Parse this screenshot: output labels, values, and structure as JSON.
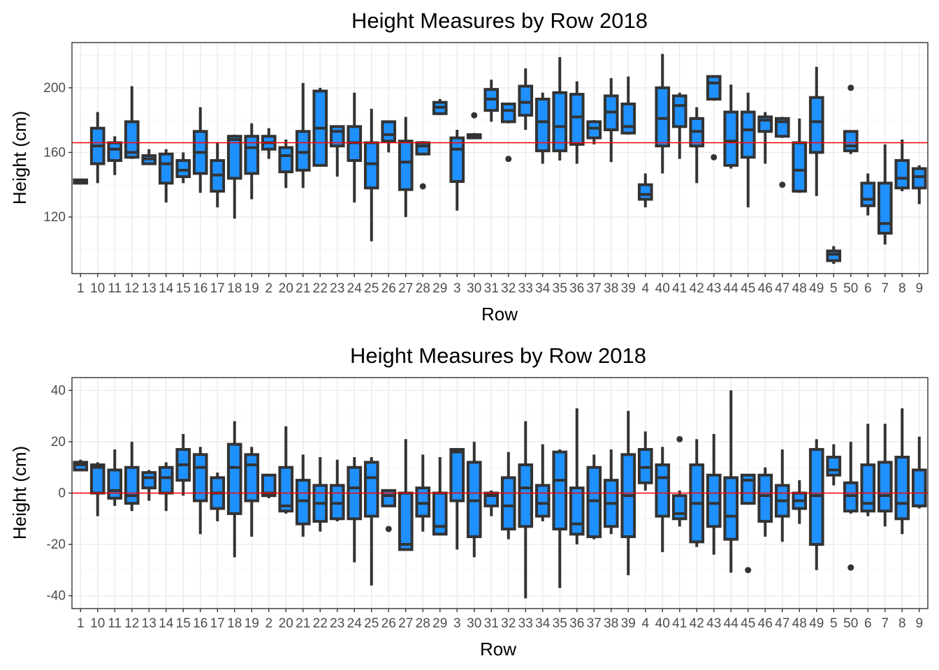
{
  "colors": {
    "box_fill": "#1e90ff",
    "box_line": "#333333",
    "reference_line": "#ff0000",
    "grid_major": "#ebebeb",
    "grid_minor": "#f5f5f5",
    "panel_border": "#333333"
  },
  "chart_data": [
    {
      "type": "boxplot",
      "title": "Height Measures by Row 2018",
      "xlabel": "Row",
      "ylabel": "Height (cm)",
      "ylim": [
        85,
        228
      ],
      "yticks": [
        120,
        160,
        200
      ],
      "reference_line": 166,
      "grid": true,
      "categories": [
        "1",
        "10",
        "11",
        "12",
        "13",
        "14",
        "15",
        "16",
        "17",
        "18",
        "19",
        "2",
        "20",
        "21",
        "22",
        "23",
        "24",
        "25",
        "26",
        "27",
        "28",
        "29",
        "3",
        "30",
        "31",
        "32",
        "33",
        "34",
        "35",
        "36",
        "37",
        "38",
        "39",
        "4",
        "40",
        "41",
        "42",
        "43",
        "44",
        "45",
        "46",
        "47",
        "48",
        "49",
        "5",
        "50",
        "6",
        "7",
        "8",
        "9"
      ],
      "boxes": [
        {
          "min": 141,
          "q1": 141,
          "median": 142,
          "q3": 143,
          "max": 143,
          "outliers": []
        },
        {
          "min": 141,
          "q1": 153,
          "median": 164,
          "q3": 175,
          "max": 185,
          "outliers": []
        },
        {
          "min": 146,
          "q1": 155,
          "median": 162,
          "q3": 166,
          "max": 170,
          "outliers": []
        },
        {
          "min": 156,
          "q1": 157,
          "median": 160,
          "q3": 179,
          "max": 201,
          "outliers": []
        },
        {
          "min": 153,
          "q1": 153,
          "median": 156,
          "q3": 158,
          "max": 162,
          "outliers": []
        },
        {
          "min": 129,
          "q1": 141,
          "median": 153,
          "q3": 159,
          "max": 162,
          "outliers": []
        },
        {
          "min": 141,
          "q1": 145,
          "median": 149,
          "q3": 155,
          "max": 160,
          "outliers": []
        },
        {
          "min": 135,
          "q1": 147,
          "median": 160,
          "q3": 173,
          "max": 188,
          "outliers": []
        },
        {
          "min": 126,
          "q1": 136,
          "median": 146,
          "q3": 155,
          "max": 166,
          "outliers": []
        },
        {
          "min": 119,
          "q1": 144,
          "median": 168,
          "q3": 170,
          "max": 171,
          "outliers": []
        },
        {
          "min": 131,
          "q1": 147,
          "median": 163,
          "q3": 170,
          "max": 178,
          "outliers": []
        },
        {
          "min": 156,
          "q1": 162,
          "median": 166,
          "q3": 170,
          "max": 175,
          "outliers": []
        },
        {
          "min": 138,
          "q1": 148,
          "median": 158,
          "q3": 163,
          "max": 168,
          "outliers": []
        },
        {
          "min": 138,
          "q1": 149,
          "median": 160,
          "q3": 173,
          "max": 203,
          "outliers": []
        },
        {
          "min": 152,
          "q1": 152,
          "median": 175,
          "q3": 198,
          "max": 200,
          "outliers": []
        },
        {
          "min": 145,
          "q1": 164,
          "median": 173,
          "q3": 176,
          "max": 176,
          "outliers": []
        },
        {
          "min": 129,
          "q1": 155,
          "median": 166,
          "q3": 176,
          "max": 197,
          "outliers": []
        },
        {
          "min": 105,
          "q1": 138,
          "median": 153,
          "q3": 166,
          "max": 187,
          "outliers": []
        },
        {
          "min": 160,
          "q1": 167,
          "median": 171,
          "q3": 179,
          "max": 179,
          "outliers": []
        },
        {
          "min": 120,
          "q1": 137,
          "median": 154,
          "q3": 167,
          "max": 182,
          "outliers": []
        },
        {
          "min": 159,
          "q1": 159,
          "median": 164,
          "q3": 166,
          "max": 167,
          "outliers": [
            139
          ]
        },
        {
          "min": 184,
          "q1": 184,
          "median": 188,
          "q3": 191,
          "max": 193,
          "outliers": []
        },
        {
          "min": 124,
          "q1": 142,
          "median": 162,
          "q3": 169,
          "max": 174,
          "outliers": []
        },
        {
          "min": 169,
          "q1": 169,
          "median": 170,
          "q3": 171,
          "max": 172,
          "outliers": [
            183
          ]
        },
        {
          "min": 179,
          "q1": 186,
          "median": 193,
          "q3": 199,
          "max": 205,
          "outliers": []
        },
        {
          "min": 178,
          "q1": 179,
          "median": 186,
          "q3": 190,
          "max": 190,
          "outliers": [
            156
          ]
        },
        {
          "min": 174,
          "q1": 183,
          "median": 191,
          "q3": 201,
          "max": 212,
          "outliers": []
        },
        {
          "min": 153,
          "q1": 161,
          "median": 179,
          "q3": 193,
          "max": 197,
          "outliers": []
        },
        {
          "min": 155,
          "q1": 161,
          "median": 176,
          "q3": 197,
          "max": 219,
          "outliers": []
        },
        {
          "min": 153,
          "q1": 165,
          "median": 182,
          "q3": 196,
          "max": 204,
          "outliers": []
        },
        {
          "min": 165,
          "q1": 169,
          "median": 175,
          "q3": 179,
          "max": 180,
          "outliers": []
        },
        {
          "min": 154,
          "q1": 174,
          "median": 185,
          "q3": 195,
          "max": 206,
          "outliers": []
        },
        {
          "min": 171,
          "q1": 172,
          "median": 176,
          "q3": 190,
          "max": 207,
          "outliers": []
        },
        {
          "min": 126,
          "q1": 131,
          "median": 134,
          "q3": 140,
          "max": 147,
          "outliers": []
        },
        {
          "min": 147,
          "q1": 164,
          "median": 181,
          "q3": 200,
          "max": 221,
          "outliers": []
        },
        {
          "min": 156,
          "q1": 176,
          "median": 189,
          "q3": 195,
          "max": 197,
          "outliers": []
        },
        {
          "min": 141,
          "q1": 164,
          "median": 173,
          "q3": 181,
          "max": 188,
          "outliers": []
        },
        {
          "min": 192,
          "q1": 193,
          "median": 203,
          "q3": 207,
          "max": 207,
          "outliers": [
            157
          ]
        },
        {
          "min": 150,
          "q1": 152,
          "median": 167,
          "q3": 185,
          "max": 202,
          "outliers": []
        },
        {
          "min": 126,
          "q1": 157,
          "median": 174,
          "q3": 185,
          "max": 197,
          "outliers": []
        },
        {
          "min": 153,
          "q1": 173,
          "median": 180,
          "q3": 182,
          "max": 185,
          "outliers": []
        },
        {
          "min": 169,
          "q1": 170,
          "median": 179,
          "q3": 181,
          "max": 182,
          "outliers": [
            140
          ]
        },
        {
          "min": 135,
          "q1": 136,
          "median": 149,
          "q3": 166,
          "max": 181,
          "outliers": []
        },
        {
          "min": 133,
          "q1": 160,
          "median": 179,
          "q3": 194,
          "max": 213,
          "outliers": []
        },
        {
          "min": 91,
          "q1": 93,
          "median": 97,
          "q3": 99,
          "max": 102,
          "outliers": []
        },
        {
          "min": 159,
          "q1": 161,
          "median": 164,
          "q3": 173,
          "max": 173,
          "outliers": [
            200
          ]
        },
        {
          "min": 121,
          "q1": 127,
          "median": 131,
          "q3": 141,
          "max": 147,
          "outliers": []
        },
        {
          "min": 103,
          "q1": 110,
          "median": 116,
          "q3": 141,
          "max": 165,
          "outliers": []
        },
        {
          "min": 136,
          "q1": 138,
          "median": 144,
          "q3": 155,
          "max": 168,
          "outliers": []
        },
        {
          "min": 128,
          "q1": 138,
          "median": 145,
          "q3": 150,
          "max": 152,
          "outliers": []
        }
      ]
    },
    {
      "type": "boxplot",
      "title": "Height Measures by Row 2018",
      "xlabel": "Row",
      "ylabel": "Height (cm)",
      "ylim": [
        -45,
        45
      ],
      "yticks": [
        -40,
        -20,
        0,
        20,
        40
      ],
      "reference_line": 0,
      "grid": true,
      "categories": [
        "1",
        "10",
        "11",
        "12",
        "13",
        "14",
        "15",
        "16",
        "17",
        "18",
        "19",
        "2",
        "20",
        "21",
        "22",
        "23",
        "24",
        "25",
        "26",
        "27",
        "28",
        "29",
        "3",
        "30",
        "31",
        "32",
        "33",
        "34",
        "35",
        "36",
        "37",
        "38",
        "39",
        "4",
        "40",
        "41",
        "42",
        "43",
        "44",
        "45",
        "46",
        "47",
        "48",
        "49",
        "5",
        "50",
        "6",
        "7",
        "8",
        "9"
      ],
      "boxes": [
        {
          "min": 9,
          "q1": 9,
          "median": 11,
          "q3": 12,
          "max": 13,
          "outliers": []
        },
        {
          "min": -9,
          "q1": 0,
          "median": 10,
          "q3": 11,
          "max": 12,
          "outliers": []
        },
        {
          "min": -5,
          "q1": -2,
          "median": 1,
          "q3": 9,
          "max": 17,
          "outliers": []
        },
        {
          "min": -7,
          "q1": -4,
          "median": -1,
          "q3": 10,
          "max": 20,
          "outliers": []
        },
        {
          "min": -3,
          "q1": 2,
          "median": 6,
          "q3": 8,
          "max": 9,
          "outliers": []
        },
        {
          "min": -7,
          "q1": 0,
          "median": 6,
          "q3": 10,
          "max": 12,
          "outliers": []
        },
        {
          "min": -1,
          "q1": 5,
          "median": 11,
          "q3": 17,
          "max": 23,
          "outliers": []
        },
        {
          "min": -16,
          "q1": -3,
          "median": 10,
          "q3": 15,
          "max": 18,
          "outliers": []
        },
        {
          "min": -11,
          "q1": -6,
          "median": 0,
          "q3": 6,
          "max": 8,
          "outliers": []
        },
        {
          "min": -25,
          "q1": -8,
          "median": 10,
          "q3": 19,
          "max": 28,
          "outliers": []
        },
        {
          "min": -17,
          "q1": -3,
          "median": 11,
          "q3": 15,
          "max": 18,
          "outliers": []
        },
        {
          "min": -2,
          "q1": -1,
          "median": 0,
          "q3": 7,
          "max": 7,
          "outliers": []
        },
        {
          "min": -8,
          "q1": -7,
          "median": -5,
          "q3": 10,
          "max": 26,
          "outliers": []
        },
        {
          "min": -17,
          "q1": -12,
          "median": -3,
          "q3": 5,
          "max": 15,
          "outliers": []
        },
        {
          "min": -15,
          "q1": -11,
          "median": -4,
          "q3": 3,
          "max": 14,
          "outliers": []
        },
        {
          "min": -11,
          "q1": -10,
          "median": -4,
          "q3": 3,
          "max": 13,
          "outliers": []
        },
        {
          "min": -27,
          "q1": -10,
          "median": 2,
          "q3": 10,
          "max": 14,
          "outliers": []
        },
        {
          "min": -36,
          "q1": -9,
          "median": 6,
          "q3": 12,
          "max": 14,
          "outliers": []
        },
        {
          "min": -5,
          "q1": -5,
          "median": -1,
          "q3": 1,
          "max": 1,
          "outliers": [
            -14
          ]
        },
        {
          "min": -22,
          "q1": -22,
          "median": -20,
          "q3": 0,
          "max": 21,
          "outliers": []
        },
        {
          "min": -15,
          "q1": -9,
          "median": -4,
          "q3": 2,
          "max": 15,
          "outliers": []
        },
        {
          "min": -16,
          "q1": -16,
          "median": -13,
          "q3": 0,
          "max": 14,
          "outliers": []
        },
        {
          "min": -22,
          "q1": -3,
          "median": 16,
          "q3": 17,
          "max": 17,
          "outliers": []
        },
        {
          "min": -25,
          "q1": -17,
          "median": -3,
          "q3": 12,
          "max": 20,
          "outliers": []
        },
        {
          "min": -9,
          "q1": -5,
          "median": -1,
          "q3": 0,
          "max": 1,
          "outliers": []
        },
        {
          "min": -18,
          "q1": -14,
          "median": -5,
          "q3": 6,
          "max": 16,
          "outliers": []
        },
        {
          "min": -41,
          "q1": -13,
          "median": 2,
          "q3": 11,
          "max": 28,
          "outliers": []
        },
        {
          "min": -11,
          "q1": -9,
          "median": -4,
          "q3": 3,
          "max": 19,
          "outliers": []
        },
        {
          "min": -37,
          "q1": -14,
          "median": 5,
          "q3": 16,
          "max": 17,
          "outliers": []
        },
        {
          "min": -20,
          "q1": -16,
          "median": -12,
          "q3": 2,
          "max": 33,
          "outliers": []
        },
        {
          "min": -18,
          "q1": -17,
          "median": -3,
          "q3": 10,
          "max": 15,
          "outliers": []
        },
        {
          "min": -16,
          "q1": -13,
          "median": -4,
          "q3": 5,
          "max": 17,
          "outliers": []
        },
        {
          "min": -32,
          "q1": -17,
          "median": -1,
          "q3": 15,
          "max": 32,
          "outliers": []
        },
        {
          "min": 1,
          "q1": 4,
          "median": 10,
          "q3": 17,
          "max": 24,
          "outliers": []
        },
        {
          "min": -23,
          "q1": -9,
          "median": 6,
          "q3": 11,
          "max": 18,
          "outliers": []
        },
        {
          "min": -13,
          "q1": -10,
          "median": -8,
          "q3": -1,
          "max": 1,
          "outliers": [
            21
          ]
        },
        {
          "min": -21,
          "q1": -19,
          "median": -4,
          "q3": 11,
          "max": 21,
          "outliers": []
        },
        {
          "min": -24,
          "q1": -13,
          "median": -4,
          "q3": 7,
          "max": 23,
          "outliers": []
        },
        {
          "min": -31,
          "q1": -18,
          "median": -9,
          "q3": 6,
          "max": 40,
          "outliers": []
        },
        {
          "min": -4,
          "q1": -4,
          "median": 5,
          "q3": 7,
          "max": 7,
          "outliers": [
            -30
          ]
        },
        {
          "min": -17,
          "q1": -11,
          "median": -1,
          "q3": 7,
          "max": 10,
          "outliers": []
        },
        {
          "min": -19,
          "q1": -9,
          "median": -3,
          "q3": 3,
          "max": 17,
          "outliers": []
        },
        {
          "min": -12,
          "q1": -6,
          "median": -3,
          "q3": 0,
          "max": 5,
          "outliers": []
        },
        {
          "min": -30,
          "q1": -20,
          "median": -1,
          "q3": 17,
          "max": 21,
          "outliers": []
        },
        {
          "min": 3,
          "q1": 7,
          "median": 9,
          "q3": 14,
          "max": 19,
          "outliers": []
        },
        {
          "min": -8,
          "q1": -7,
          "median": -1,
          "q3": 4,
          "max": 20,
          "outliers": [
            -29
          ]
        },
        {
          "min": -9,
          "q1": -7,
          "median": -4,
          "q3": 11,
          "max": 27,
          "outliers": []
        },
        {
          "min": -13,
          "q1": -7,
          "median": -1,
          "q3": 12,
          "max": 27,
          "outliers": []
        },
        {
          "min": -16,
          "q1": -10,
          "median": -4,
          "q3": 14,
          "max": 33,
          "outliers": []
        },
        {
          "min": -6,
          "q1": -5,
          "median": -5,
          "q3": 9,
          "max": 22,
          "outliers": []
        }
      ]
    }
  ]
}
